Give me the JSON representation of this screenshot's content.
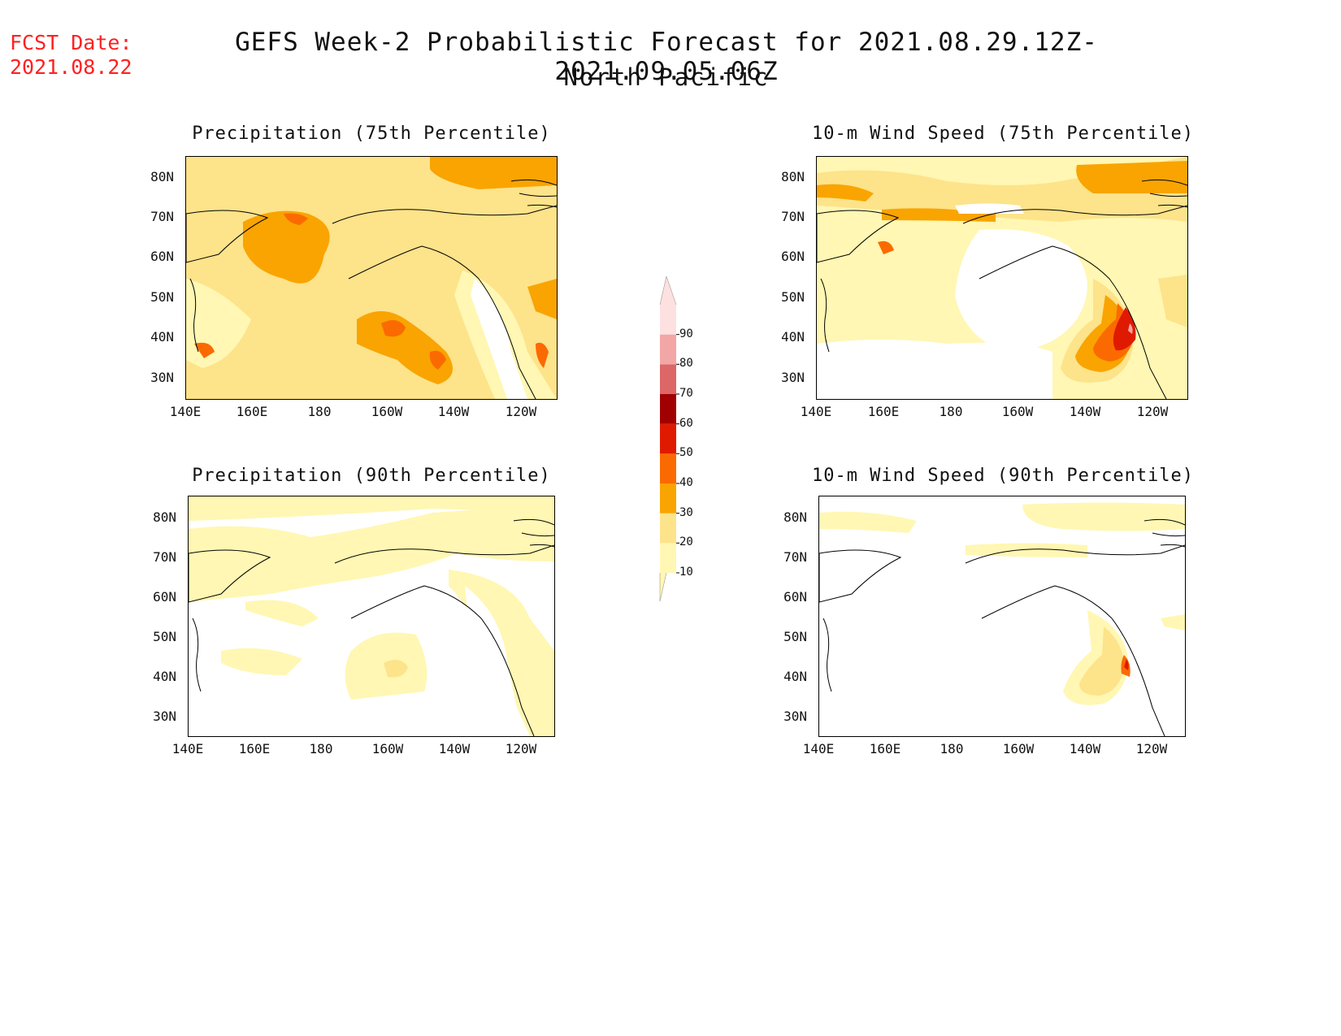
{
  "header": {
    "fcst_label": "FCST Date:",
    "fcst_date": "2021.08.22",
    "title_line1": "GEFS Week-2 Probabilistic Forecast for 2021.08.29.12Z-2021.09.05.06Z",
    "title_line2": "North Pacific"
  },
  "colorbar": {
    "labels": [
      "10",
      "20",
      "30",
      "40",
      "50",
      "60",
      "70",
      "80",
      "90"
    ],
    "colors": [
      "#fff7b3",
      "#fde38a",
      "#f9a400",
      "#fb6a00",
      "#e01a00",
      "#a00000",
      "#dd6666",
      "#f3a6a6",
      "#fde0e0"
    ]
  },
  "axes": {
    "y_ticks": [
      "80N",
      "70N",
      "60N",
      "50N",
      "40N",
      "30N"
    ],
    "x_ticks": [
      "140E",
      "160E",
      "180",
      "160W",
      "140W",
      "120W"
    ]
  },
  "panels": [
    {
      "title": "Precipitation (75th Percentile)"
    },
    {
      "title": "10-m Wind Speed (75th Percentile)"
    },
    {
      "title": "Precipitation (90th Percentile)"
    },
    {
      "title": "10-m Wind Speed (90th Percentile)"
    }
  ]
}
